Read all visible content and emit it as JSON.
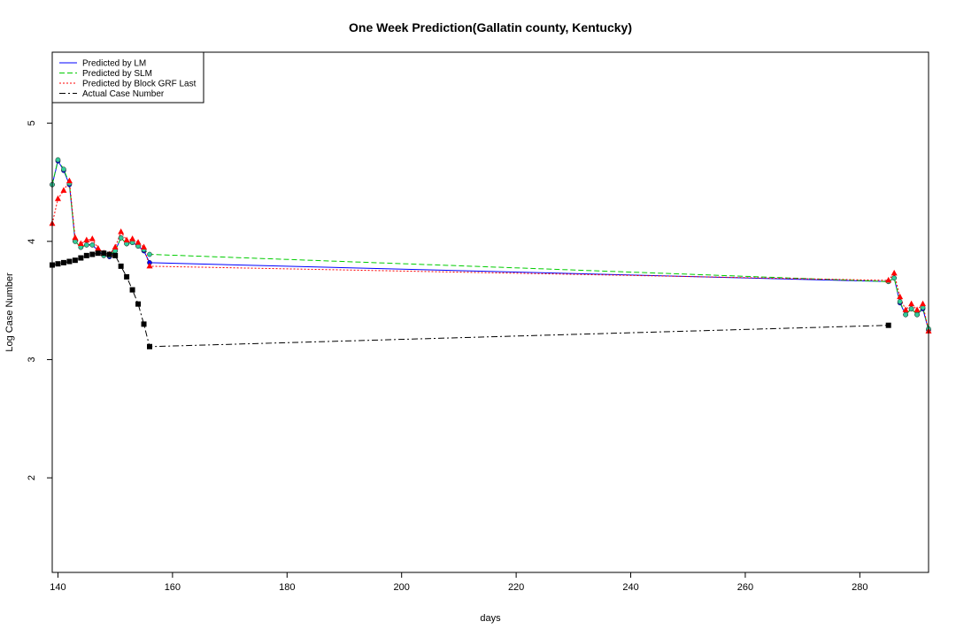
{
  "chart_data": {
    "type": "line",
    "title": "One Week Prediction(Gallatin county, Kentucky)",
    "xlabel": "days",
    "ylabel": "Log Case Number",
    "xlim": [
      139,
      292
    ],
    "ylim": [
      1.2,
      5.6
    ],
    "xticks": [
      140,
      160,
      180,
      200,
      220,
      240,
      260,
      280
    ],
    "yticks": [
      2,
      3,
      4,
      5
    ],
    "grid": false,
    "legend_position": "top-left",
    "series": [
      {
        "name": "Predicted by LM",
        "color": "#0000ff",
        "line_style": "solid",
        "marker": "circle",
        "marker_color": "#0000ff",
        "x": [
          139,
          140,
          141,
          142,
          143,
          144,
          145,
          146,
          147,
          148,
          149,
          150,
          151,
          152,
          153,
          154,
          155,
          156,
          285,
          286,
          287,
          288,
          289,
          290,
          291,
          292
        ],
        "y": [
          4.48,
          4.68,
          4.6,
          4.48,
          4.0,
          3.95,
          3.97,
          3.97,
          3.92,
          3.88,
          3.87,
          3.92,
          4.03,
          3.98,
          3.99,
          3.96,
          3.92,
          3.82,
          3.66,
          3.69,
          3.48,
          3.38,
          3.43,
          3.38,
          3.43,
          3.25
        ]
      },
      {
        "name": "Predicted by SLM",
        "color": "#00cc00",
        "line_style": "dashed",
        "marker": "circle",
        "marker_color": "#33cc99",
        "x": [
          139,
          140,
          141,
          142,
          143,
          144,
          145,
          146,
          147,
          148,
          149,
          150,
          151,
          152,
          153,
          154,
          155,
          156,
          285,
          286,
          287,
          288,
          289,
          290,
          291,
          292
        ],
        "y": [
          4.48,
          4.69,
          4.61,
          4.49,
          4.0,
          3.95,
          3.97,
          3.97,
          3.92,
          3.88,
          3.88,
          3.92,
          4.03,
          3.98,
          3.99,
          3.96,
          3.93,
          3.89,
          3.66,
          3.69,
          3.49,
          3.38,
          3.43,
          3.38,
          3.44,
          3.26
        ]
      },
      {
        "name": "Predicted by Block GRF Last",
        "color": "#ff0000",
        "line_style": "dotted",
        "marker": "triangle",
        "marker_color": "#ff0000",
        "x": [
          139,
          140,
          141,
          142,
          143,
          144,
          145,
          146,
          147,
          148,
          149,
          150,
          151,
          152,
          153,
          154,
          155,
          156,
          285,
          286,
          287,
          288,
          289,
          290,
          291,
          292
        ],
        "y": [
          4.15,
          4.36,
          4.43,
          4.51,
          4.03,
          3.98,
          4.01,
          4.02,
          3.94,
          3.9,
          3.89,
          3.95,
          4.08,
          4.01,
          4.02,
          3.99,
          3.95,
          3.79,
          3.67,
          3.73,
          3.53,
          3.42,
          3.47,
          3.42,
          3.47,
          3.24
        ]
      },
      {
        "name": "Actual Case Number",
        "color": "#000000",
        "line_style": "dashdot",
        "marker": "square",
        "marker_color": "#000000",
        "x": [
          139,
          140,
          141,
          142,
          143,
          144,
          145,
          146,
          147,
          148,
          149,
          150,
          151,
          152,
          153,
          154,
          155,
          156,
          285
        ],
        "y": [
          3.8,
          3.81,
          3.82,
          3.83,
          3.84,
          3.86,
          3.88,
          3.89,
          3.9,
          3.9,
          3.89,
          3.88,
          3.79,
          3.7,
          3.59,
          3.47,
          3.3,
          3.11,
          3.29
        ]
      }
    ]
  }
}
